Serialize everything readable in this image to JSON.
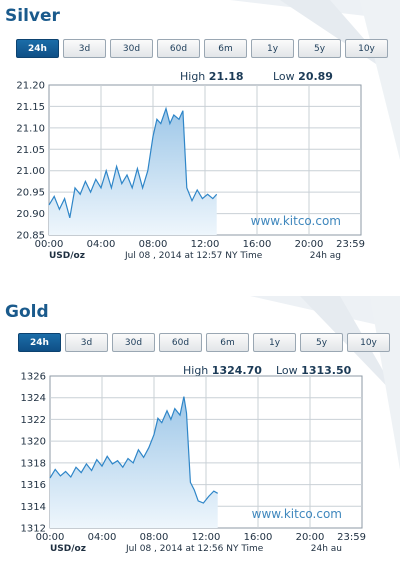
{
  "tabs": [
    "24h",
    "3d",
    "30d",
    "60d",
    "6m",
    "1y",
    "5y",
    "10y"
  ],
  "high_label": "High",
  "low_label": "Low",
  "watermark": "www.kitco.com",
  "colors": {
    "title": "#1a5a8c",
    "line": "#2f86c8",
    "fill_top": "#9ec7e8",
    "fill_bottom": "#eef6fc",
    "tab_active": "#145d99"
  },
  "silver": {
    "title": "Silver",
    "active_tab": "24h",
    "high": "21.18",
    "low": "20.89",
    "unit": "USD/oz",
    "timestamp": "Jul 08 , 2014 at 12:57 NY Time",
    "span_label": "24h ag"
  },
  "gold": {
    "title": "Gold",
    "active_tab": "24h",
    "high": "1324.70",
    "low": "1313.50",
    "unit": "USD/oz",
    "timestamp": "Jul 08 , 2014 at 12:56 NY Time",
    "span_label": "24h au"
  },
  "chart_data": [
    {
      "type": "line",
      "title": "Silver",
      "xlabel": "",
      "ylabel": "",
      "ylim": [
        20.85,
        21.2
      ],
      "xlim": [
        0,
        24
      ],
      "grid": true,
      "y_ticks": [
        "21.20",
        "21.15",
        "21.10",
        "21.05",
        "21.00",
        "20.95",
        "20.90",
        "20.85"
      ],
      "x_ticks": [
        "00:00",
        "04:00",
        "08:00",
        "12:00",
        "16:00",
        "20:00",
        "23:59"
      ],
      "series": [
        {
          "x": [
            0,
            0.4,
            0.8,
            1.2,
            1.6,
            2.0,
            2.4,
            2.8,
            3.2,
            3.6,
            4.0,
            4.4,
            4.8,
            5.2,
            5.6,
            6.0,
            6.4,
            6.8,
            7.2,
            7.6,
            8.0,
            8.3,
            8.6,
            9.0,
            9.3,
            9.6,
            10.0,
            10.3,
            10.6,
            11.0,
            11.4,
            11.8,
            12.2,
            12.6,
            12.9
          ],
          "values": [
            20.92,
            20.94,
            20.91,
            20.935,
            20.89,
            20.96,
            20.945,
            20.975,
            20.95,
            20.98,
            20.96,
            21.0,
            20.96,
            21.01,
            20.97,
            20.99,
            20.96,
            21.005,
            20.96,
            21.0,
            21.08,
            21.12,
            21.11,
            21.145,
            21.11,
            21.13,
            21.12,
            21.14,
            20.96,
            20.93,
            20.955,
            20.935,
            20.945,
            20.935,
            20.945
          ]
        }
      ]
    },
    {
      "type": "line",
      "title": "Gold",
      "xlabel": "",
      "ylabel": "",
      "ylim": [
        1312,
        1326
      ],
      "xlim": [
        0,
        24
      ],
      "grid": true,
      "y_ticks": [
        "1326",
        "1324",
        "1322",
        "1320",
        "1318",
        "1316",
        "1314",
        "1312"
      ],
      "x_ticks": [
        "00:00",
        "04:00",
        "08:00",
        "12:00",
        "16:00",
        "20:00",
        "23:59"
      ],
      "series": [
        {
          "x": [
            0,
            0.4,
            0.8,
            1.2,
            1.6,
            2.0,
            2.4,
            2.8,
            3.2,
            3.6,
            4.0,
            4.4,
            4.8,
            5.2,
            5.6,
            6.0,
            6.4,
            6.8,
            7.2,
            7.6,
            8.0,
            8.3,
            8.6,
            9.0,
            9.3,
            9.6,
            10.0,
            10.3,
            10.5,
            10.8,
            11.1,
            11.4,
            11.8,
            12.2,
            12.6,
            12.9
          ],
          "values": [
            1316.6,
            1317.4,
            1316.8,
            1317.2,
            1316.7,
            1317.6,
            1317.1,
            1317.9,
            1317.3,
            1318.3,
            1317.7,
            1318.6,
            1317.9,
            1318.2,
            1317.6,
            1318.4,
            1318.0,
            1319.2,
            1318.5,
            1319.4,
            1320.6,
            1322.1,
            1321.7,
            1322.8,
            1322.0,
            1323.0,
            1322.4,
            1324.1,
            1322.6,
            1316.2,
            1315.5,
            1314.5,
            1314.3,
            1314.9,
            1315.4,
            1315.2
          ]
        }
      ]
    }
  ]
}
